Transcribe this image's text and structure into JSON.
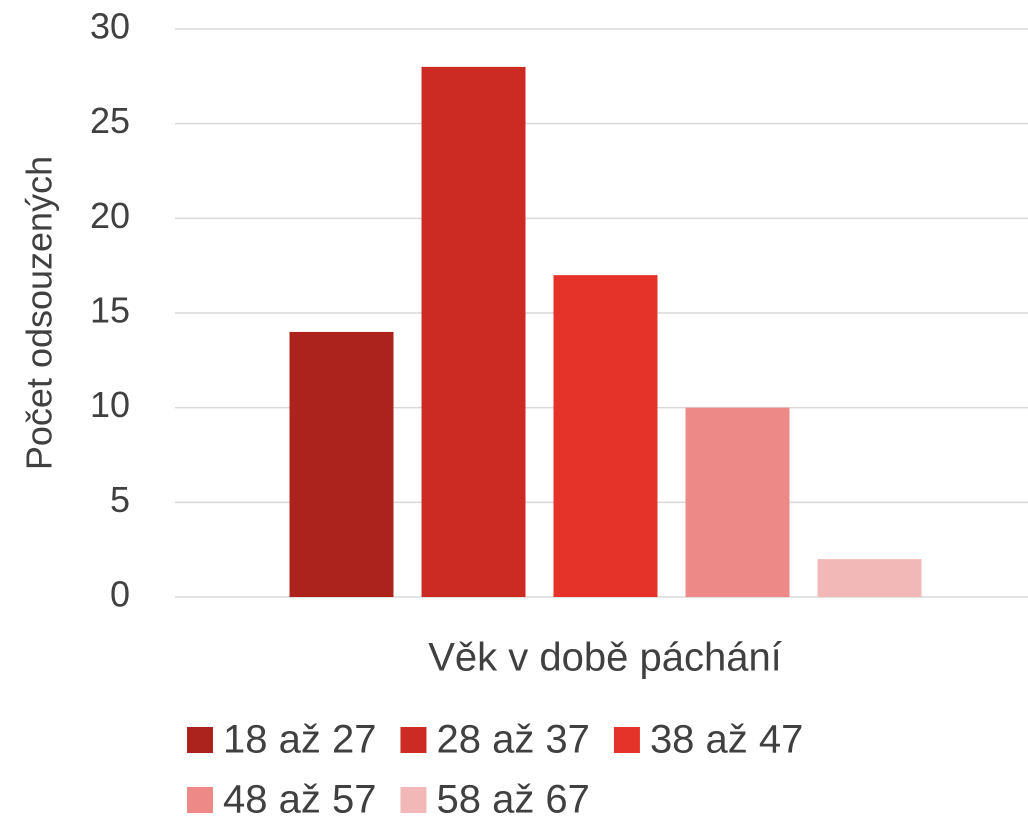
{
  "chart_data": {
    "type": "bar",
    "y_label": "Počet odsouzených",
    "x_label": "Věk v době páchání",
    "categories": [
      null
    ],
    "series": [
      {
        "name": "18 až 27",
        "color": "#ab231c",
        "values": [
          14
        ]
      },
      {
        "name": "28 až 37",
        "color": "#cc2b24",
        "values": [
          28
        ]
      },
      {
        "name": "38 až 47",
        "color": "#e5332a",
        "values": [
          17
        ]
      },
      {
        "name": "48 až 57",
        "color": "#ed8986",
        "values": [
          10
        ]
      },
      {
        "name": "58 až 67",
        "color": "#f2b8b7",
        "values": [
          2
        ]
      }
    ],
    "ylim": [
      0,
      30
    ],
    "yticks": [
      0,
      5,
      10,
      15,
      20,
      25,
      30
    ],
    "grid": true,
    "legend": "bottom"
  }
}
